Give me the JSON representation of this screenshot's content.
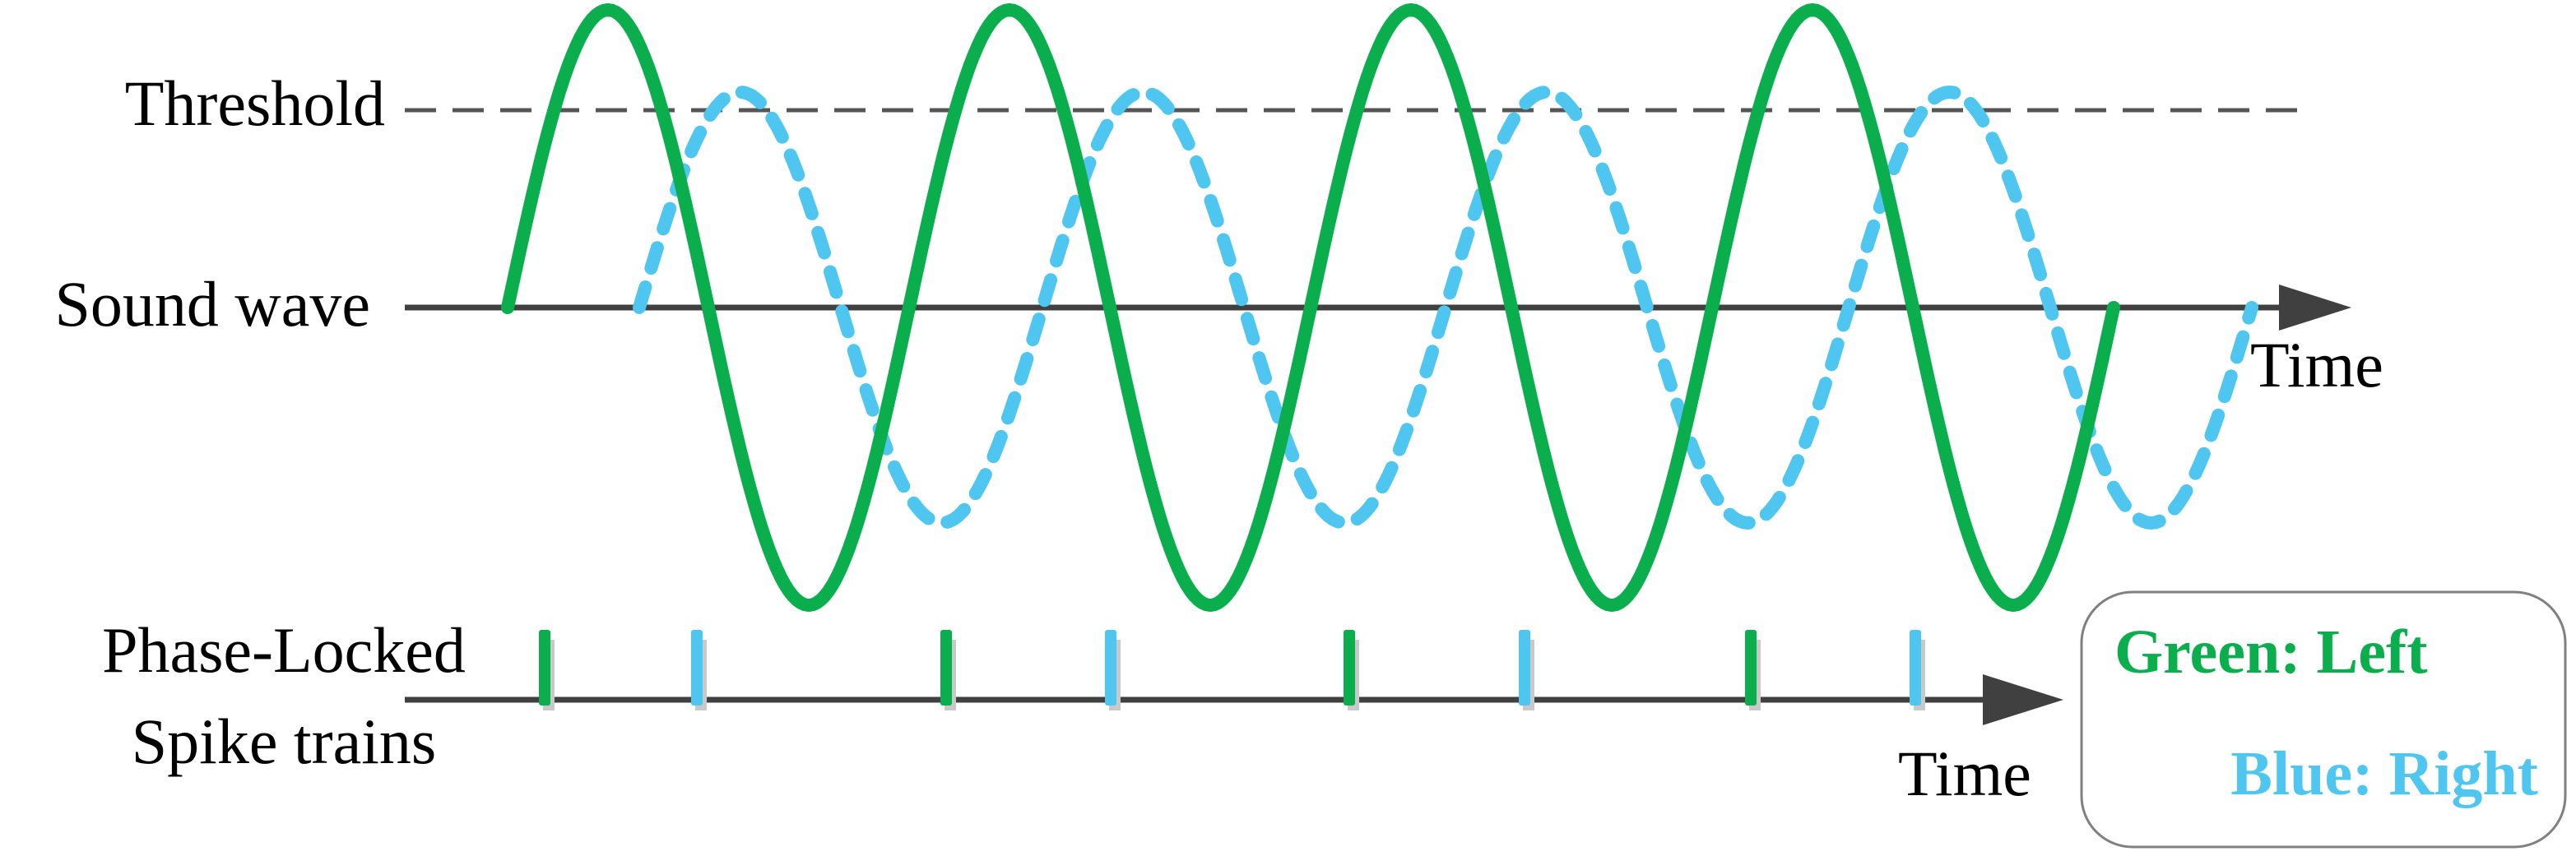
{
  "labels": {
    "threshold": "Threshold",
    "sound_wave": "Sound wave",
    "time_top": "Time",
    "spike_line1": "Phase-Locked",
    "spike_line2": "Spike trains",
    "time_bottom": "Time"
  },
  "legend": {
    "green": "Green: Left",
    "blue": "Blue: Right"
  },
  "colors": {
    "green": "#0aae4c",
    "blue": "#4fc6f0",
    "axis": "#404040",
    "threshold": "#555555",
    "legend_border": "#808080"
  },
  "waves": {
    "green": {
      "style": "solid",
      "cycles": 4
    },
    "blue": {
      "style": "dashed",
      "cycles": 4,
      "lag_fraction_of_period": 0.33
    }
  },
  "spikes": [
    {
      "channel": "green"
    },
    {
      "channel": "blue"
    },
    {
      "channel": "green"
    },
    {
      "channel": "blue"
    },
    {
      "channel": "green"
    },
    {
      "channel": "blue"
    },
    {
      "channel": "green"
    },
    {
      "channel": "blue"
    }
  ]
}
